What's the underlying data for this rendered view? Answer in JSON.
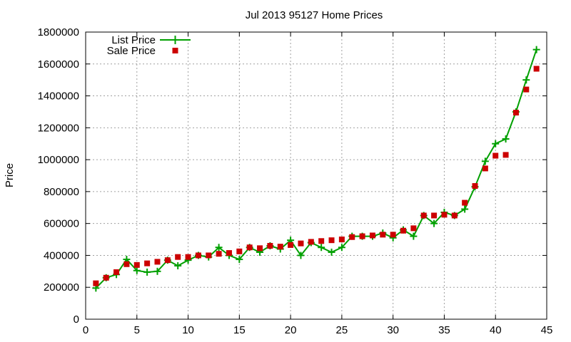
{
  "chart_data": {
    "type": "line",
    "title": "Jul 2013 95127 Home Prices",
    "xlabel": "",
    "ylabel": "Price",
    "xlim": [
      0,
      45
    ],
    "ylim": [
      0,
      1800000
    ],
    "x_ticks": [
      0,
      5,
      10,
      15,
      20,
      25,
      30,
      35,
      40,
      45
    ],
    "y_ticks": [
      0,
      200000,
      400000,
      600000,
      800000,
      1000000,
      1200000,
      1400000,
      1600000,
      1800000
    ],
    "grid": true,
    "legend_position": "top-left",
    "series": [
      {
        "name": "List Price",
        "style": "line-with-plus-markers",
        "color": "#00a000",
        "x": [
          1,
          2,
          3,
          4,
          5,
          6,
          7,
          8,
          9,
          10,
          11,
          12,
          13,
          14,
          15,
          16,
          17,
          18,
          19,
          20,
          21,
          22,
          23,
          24,
          25,
          26,
          27,
          28,
          29,
          30,
          31,
          32,
          33,
          34,
          35,
          36,
          37,
          38,
          39,
          40,
          41,
          42,
          43,
          44
        ],
        "values": [
          195000,
          260000,
          280000,
          375000,
          305000,
          295000,
          300000,
          370000,
          335000,
          370000,
          400000,
          390000,
          450000,
          400000,
          375000,
          450000,
          420000,
          460000,
          440000,
          495000,
          400000,
          480000,
          450000,
          420000,
          450000,
          520000,
          520000,
          520000,
          540000,
          510000,
          560000,
          520000,
          650000,
          600000,
          670000,
          650000,
          690000,
          830000,
          990000,
          1100000,
          1130000,
          1300000,
          1500000,
          1690000
        ]
      },
      {
        "name": "Sale Price",
        "style": "square-markers",
        "color": "#cc0000",
        "x": [
          1,
          2,
          3,
          4,
          5,
          6,
          7,
          8,
          9,
          10,
          11,
          12,
          13,
          14,
          15,
          16,
          17,
          18,
          19,
          20,
          21,
          22,
          23,
          24,
          25,
          26,
          27,
          28,
          29,
          30,
          31,
          32,
          33,
          34,
          35,
          36,
          37,
          38,
          39,
          40,
          41,
          42,
          43,
          44
        ],
        "values": [
          225000,
          260000,
          295000,
          345000,
          340000,
          350000,
          360000,
          370000,
          390000,
          390000,
          400000,
          400000,
          410000,
          415000,
          425000,
          450000,
          445000,
          460000,
          455000,
          465000,
          475000,
          485000,
          490000,
          495000,
          500000,
          515000,
          520000,
          525000,
          530000,
          530000,
          555000,
          570000,
          650000,
          650000,
          655000,
          650000,
          730000,
          835000,
          945000,
          1025000,
          1030000,
          1295000,
          1440000,
          1570000
        ]
      }
    ]
  }
}
